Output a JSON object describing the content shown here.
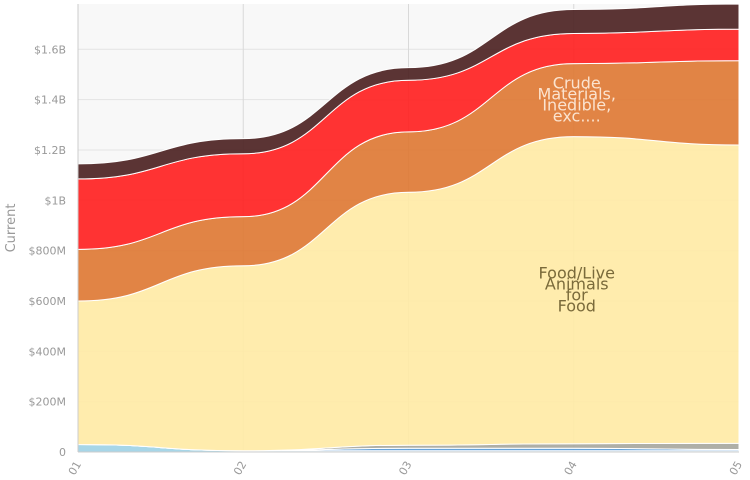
{
  "chart_data": {
    "type": "area",
    "stacked": true,
    "ylabel": "Current",
    "xlabel": "",
    "x": [
      "01",
      "02",
      "03",
      "04",
      "05"
    ],
    "y_ticks": [
      "0",
      "$200M",
      "$400M",
      "$600M",
      "$800M",
      "$1B",
      "$1.2B",
      "$1.4B",
      "$1.6B"
    ],
    "ylim": [
      0,
      1780000000
    ],
    "grid": true,
    "series": [
      {
        "key": "light-blue",
        "color": "#9fd3e6",
        "values": [
          30000000,
          5000000,
          5000000,
          5000000,
          5000000
        ]
      },
      {
        "key": "mid-blue",
        "color": "#5b9bd5",
        "values": [
          0,
          0,
          10000000,
          10000000,
          5000000
        ]
      },
      {
        "key": "gray",
        "color": "#a8a8a0",
        "values": [
          0,
          0,
          12000000,
          18000000,
          25000000
        ]
      },
      {
        "name": "Food/Live Animals for Food",
        "color": "#ffeaa6",
        "values": [
          570000000,
          735000000,
          1005000000,
          1220000000,
          1185000000
        ]
      },
      {
        "name": "Crude Materials, Inedible, exc....",
        "color": "#de7a35",
        "values": [
          205000000,
          195000000,
          240000000,
          290000000,
          335000000
        ]
      },
      {
        "key": "red",
        "color": "#ff2222",
        "values": [
          280000000,
          250000000,
          205000000,
          120000000,
          125000000
        ]
      },
      {
        "key": "dark-brown",
        "color": "#4d2323",
        "values": [
          60000000,
          60000000,
          50000000,
          95000000,
          100000000
        ]
      }
    ],
    "annotations": [
      {
        "series": "Food/Live Animals for Food",
        "lines": [
          "Food/Live",
          "Animals",
          "for",
          "Food"
        ],
        "color": "#7a6a3a"
      },
      {
        "series": "Crude Materials, Inedible, exc....",
        "lines": [
          "Crude",
          "Materials,",
          "Inedible,",
          "exc...."
        ],
        "color": "#fbe3cf"
      }
    ]
  }
}
